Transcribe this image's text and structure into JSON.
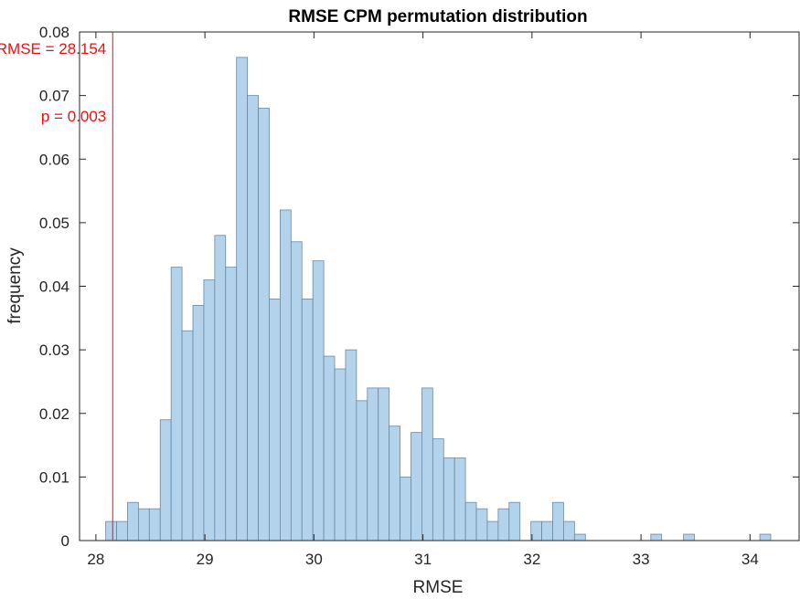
{
  "chart_data": {
    "type": "bar",
    "title": "RMSE CPM permutation distribution",
    "xlabel": "RMSE",
    "ylabel": "frequency",
    "xlim": [
      27.85,
      34.45
    ],
    "ylim": [
      0,
      0.08
    ],
    "xticks": [
      28,
      29,
      30,
      31,
      32,
      33,
      34
    ],
    "yticks": [
      0,
      0.01,
      0.02,
      0.03,
      0.04,
      0.05,
      0.06,
      0.07,
      0.08
    ],
    "xtick_labels": [
      "28",
      "29",
      "30",
      "31",
      "32",
      "33",
      "34"
    ],
    "ytick_labels": [
      "0",
      "0.01",
      "0.02",
      "0.03",
      "0.04",
      "0.05",
      "0.06",
      "0.07",
      "0.08"
    ],
    "bin_width": 0.1,
    "bin_start": 28.09,
    "values": [
      0.003,
      0.003,
      0.006,
      0.005,
      0.005,
      0.019,
      0.043,
      0.033,
      0.037,
      0.041,
      0.048,
      0.043,
      0.076,
      0.07,
      0.068,
      0.038,
      0.052,
      0.047,
      0.038,
      0.044,
      0.029,
      0.027,
      0.03,
      0.022,
      0.024,
      0.024,
      0.018,
      0.01,
      0.017,
      0.024,
      0.016,
      0.013,
      0.013,
      0.006,
      0.005,
      0.003,
      0.005,
      0.006,
      0,
      0.003,
      0.003,
      0.006,
      0.003,
      0.001,
      0,
      0,
      0,
      0,
      0,
      0,
      0.001,
      0,
      0,
      0.001,
      0,
      0,
      0,
      0,
      0,
      0,
      0.001
    ],
    "bar_fill": "#b2d3eb",
    "bar_edge": "#6b8aa0",
    "reference": {
      "value": 28.154,
      "label": "RMSE = 28.154",
      "p_label": "p = 0.003",
      "color": "#ee1111"
    },
    "grid": false
  }
}
